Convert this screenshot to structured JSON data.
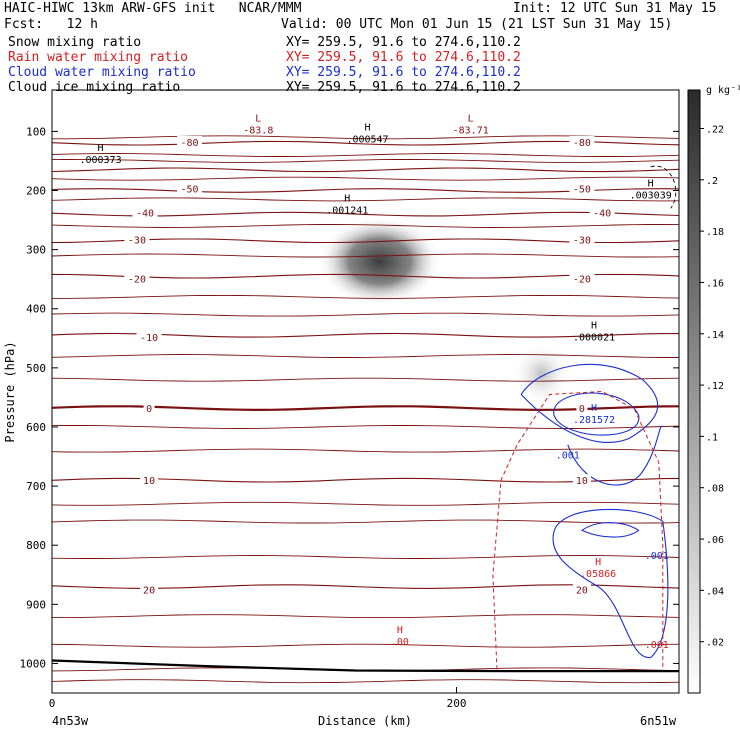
{
  "header": {
    "title_left": "HAIC-HIWC 13km ARW-GFS init   NCAR/MMM",
    "init_text": "Init: 12 UTC Sun 31 May 15",
    "fcst_label": "Fcst:   12 h",
    "valid_text": "Valid: 00 UTC Mon 01 Jun 15 (21 LST Sun 31 May 15)",
    "fields": [
      {
        "name": "Snow mixing ratio",
        "xy": "XY= 259.5, 91.6 to 274.6,110.2",
        "color": "#000000"
      },
      {
        "name": "Rain water mixing ratio",
        "xy": "XY= 259.5, 91.6 to 274.6,110.2",
        "color": "#d42020"
      },
      {
        "name": "Cloud water mixing ratio",
        "xy": "XY= 259.5, 91.6 to 274.6,110.2",
        "color": "#1a2fd0"
      },
      {
        "name": "Cloud ice mixing ratio",
        "xy": "XY= 259.5, 91.6 to 274.6,110.2",
        "color": "#000000"
      }
    ]
  },
  "chart_data": {
    "type": "heatmap",
    "description_note": "",
    "xlabel": "Distance (km)",
    "ylabel": "Pressure (hPa)",
    "x_ticks": [
      0,
      200
    ],
    "x_range": [
      0,
      310
    ],
    "y_ticks": [
      100,
      200,
      300,
      400,
      500,
      600,
      700,
      800,
      900,
      1000
    ],
    "y_range": [
      30,
      1050
    ],
    "x_endpoints": {
      "left": "4n53w",
      "right": "6n51w"
    },
    "colorbar": {
      "unit": "g kg⁻¹",
      "ticks": [
        ".02",
        ".04",
        ".06",
        ".08",
        ".1",
        ".12",
        ".14",
        ".16",
        ".18",
        ".2",
        ".22"
      ],
      "max": 0.235
    },
    "shading_blobs": [
      {
        "x": 162,
        "p": 320,
        "peak": 0.22
      },
      {
        "x": 242,
        "p": 510,
        "peak": 0.06
      }
    ],
    "temperature_contours": [
      {
        "value": -80,
        "p": 120
      },
      {
        "value": -60,
        "p": 165
      },
      {
        "value": -50,
        "p": 200
      },
      {
        "value": -40,
        "p": 240
      },
      {
        "value": -30,
        "p": 285
      },
      {
        "value": -20,
        "p": 345
      },
      {
        "value": -10,
        "p": 445
      },
      {
        "value": 0,
        "p": 568
      },
      {
        "value": 10,
        "p": 690
      },
      {
        "value": 20,
        "p": 870
      }
    ],
    "temperature_labels": [
      {
        "text": "-80",
        "x": 68,
        "p": 118
      },
      {
        "text": "-80",
        "x": 262,
        "p": 118
      },
      {
        "text": "-50",
        "x": 68,
        "p": 197
      },
      {
        "text": "-50",
        "x": 262,
        "p": 197
      },
      {
        "text": "-40",
        "x": 46,
        "p": 237
      },
      {
        "text": "-40",
        "x": 272,
        "p": 237
      },
      {
        "text": "-30",
        "x": 42,
        "p": 283
      },
      {
        "text": "-30",
        "x": 262,
        "p": 283
      },
      {
        "text": "-20",
        "x": 42,
        "p": 349
      },
      {
        "text": "-20",
        "x": 262,
        "p": 349
      },
      {
        "text": "-10",
        "x": 48,
        "p": 448
      },
      {
        "text": "0",
        "x": 48,
        "p": 568
      },
      {
        "text": "0",
        "x": 262,
        "p": 568
      },
      {
        "text": "10",
        "x": 48,
        "p": 690
      },
      {
        "text": "10",
        "x": 262,
        "p": 690
      },
      {
        "text": "20",
        "x": 48,
        "p": 875
      },
      {
        "text": "20",
        "x": 262,
        "p": 875
      }
    ],
    "extrema_labels": [
      {
        "mark": "L",
        "value": "-83.8",
        "x": 102,
        "p": 90,
        "color": "#8b1010"
      },
      {
        "mark": "L",
        "value": "-83.71",
        "x": 207,
        "p": 90,
        "color": "#8b1010"
      },
      {
        "mark": "H",
        "value": ".000547",
        "x": 156,
        "p": 105,
        "color": "#000000"
      },
      {
        "mark": "H",
        "value": ".000373",
        "x": 24,
        "p": 140,
        "color": "#000000"
      },
      {
        "mark": "H",
        "value": ".001241",
        "x": 146,
        "p": 225,
        "color": "#000000"
      },
      {
        "mark": "H",
        "value": ".003039",
        "x": 296,
        "p": 200,
        "color": "#000000"
      },
      {
        "mark": "H",
        "value": ".000021",
        "x": 268,
        "p": 440,
        "color": "#000000"
      },
      {
        "mark": "H",
        "value": ".281572",
        "x": 268,
        "p": 580,
        "color": "#1a2fd0"
      },
      {
        "mark": "",
        "value": ".001",
        "x": 255,
        "p": 640,
        "color": "#1a2fd0"
      },
      {
        "mark": "",
        "value": ".001",
        "x": 299,
        "p": 810,
        "color": "#1a2fd0"
      },
      {
        "mark": "H",
        "value": ".05866",
        "x": 270,
        "p": 840,
        "color": "#d42020"
      },
      {
        "mark": "",
        "value": ".001",
        "x": 299,
        "p": 960,
        "color": "#d42020"
      },
      {
        "mark": "H",
        "value": ".00",
        "x": 172,
        "p": 955,
        "color": "#d42020"
      }
    ]
  }
}
